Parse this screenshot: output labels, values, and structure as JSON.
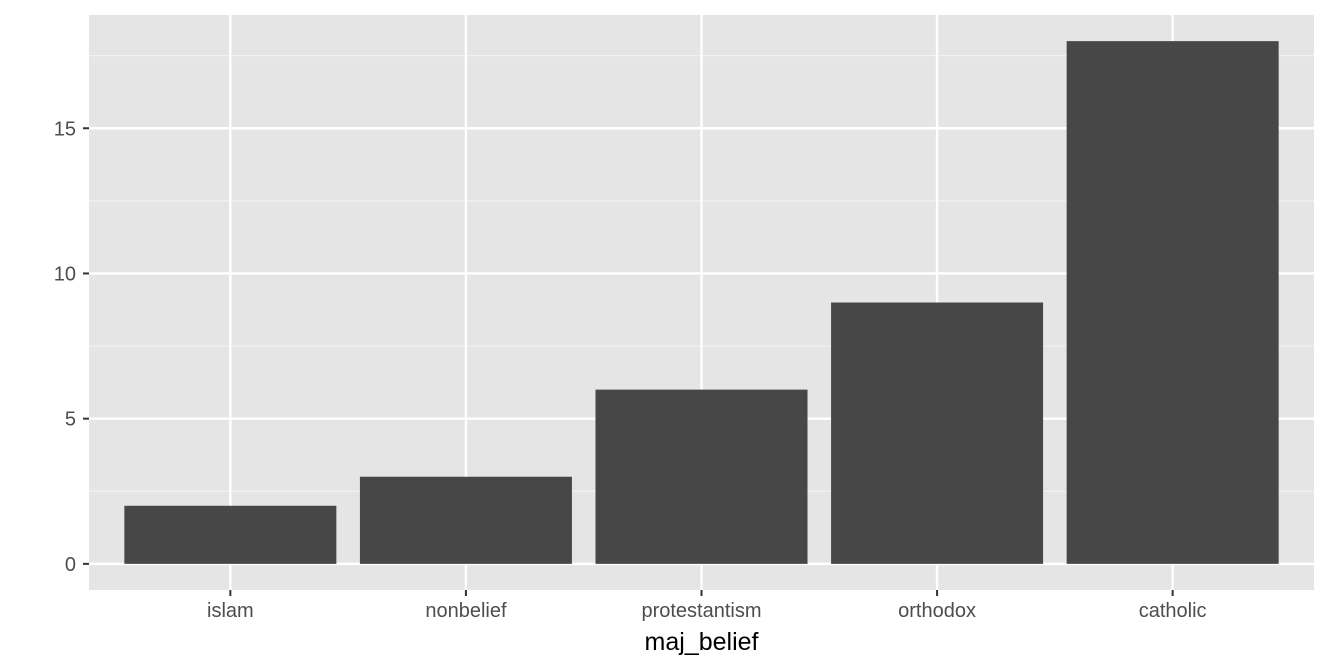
{
  "chart_data": {
    "type": "bar",
    "title": "",
    "xlabel": "maj_belief",
    "ylabel": "",
    "categories": [
      "islam",
      "nonbelief",
      "protestantism",
      "orthodox",
      "catholic"
    ],
    "values": [
      2,
      3,
      6,
      9,
      18
    ],
    "ylim": [
      -0.9,
      18.9
    ],
    "yticks": [
      0,
      5,
      10,
      15
    ],
    "ytick_labels": [
      "0",
      "5",
      "10",
      "15"
    ],
    "grid": true,
    "legend": "none",
    "colors": {
      "bar": "#474747",
      "panel_background": "#e5e5e5",
      "grid_major": "#ffffff",
      "grid_minor": "#f2f2f2",
      "tick_text": "#4d4d4d",
      "axis_title": "#000000"
    }
  }
}
